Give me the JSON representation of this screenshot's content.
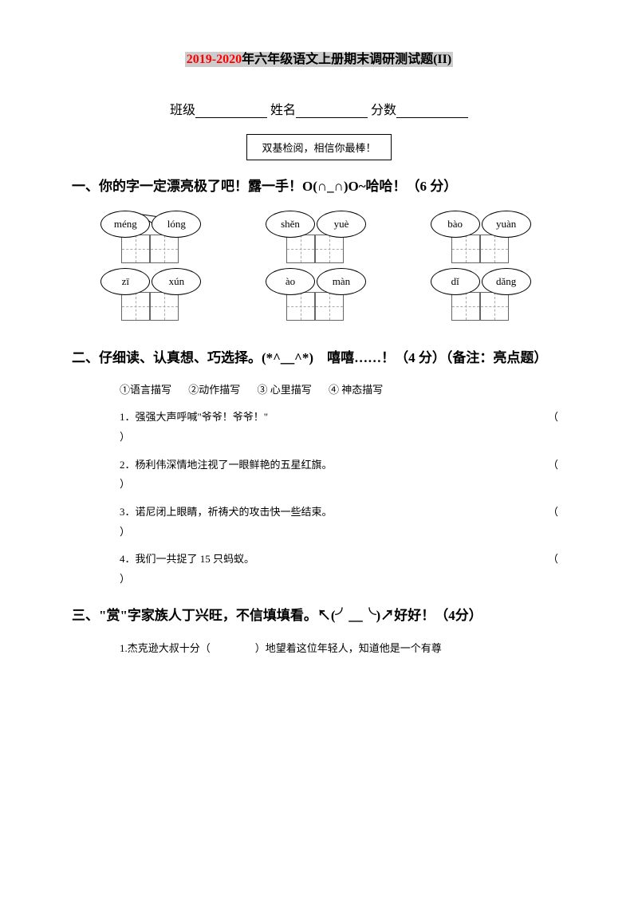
{
  "title": {
    "highlighted_red": "2019-2020",
    "highlighted_black": "年六年级语文上册期末调研测试题(II)"
  },
  "info_labels": {
    "class": "班级",
    "name": "姓名",
    "score": "分数"
  },
  "callout": "双基检阅，相信你最棒！",
  "section1": {
    "heading": "一、你的字一定漂亮极了吧！露一手！O(∩_∩)O~哈哈！（6 分）",
    "groups": [
      {
        "tl": "méng",
        "tr": "lóng",
        "ml": "zī",
        "mr": "xún"
      },
      {
        "tl": "shěn",
        "tr": "yuè",
        "ml": "ào",
        "mr": "màn"
      },
      {
        "tl": "bào",
        "tr": "yuàn",
        "ml": "dǐ",
        "mr": "dǎng"
      }
    ]
  },
  "section2": {
    "heading": "二、仔细读、认真想、巧选择。(*^＿^*)　嘻嘻……！（4 分）（备注：亮点题）",
    "options": [
      "①语言描写",
      "②动作描写",
      "③ 心里描写",
      "④ 神态描写"
    ],
    "items": [
      "1．强强大声呼喊\"爷爷！爷爷！\"",
      "2．杨利伟深情地注视了一眼鲜艳的五星红旗。",
      "3．诺尼闭上眼睛，祈祷犬的攻击快一些结束。",
      "4．我们一共捉了 15 只蚂蚁。"
    ]
  },
  "section3": {
    "heading": "三、\"赏\"字家族人丁兴旺，不信填填看。↖(╯＿╰)↗好好！（4分）",
    "item1_pre": "1.杰克逊大叔十分（",
    "item1_post": "）地望着这位年轻人，知道他是一个有尊"
  }
}
